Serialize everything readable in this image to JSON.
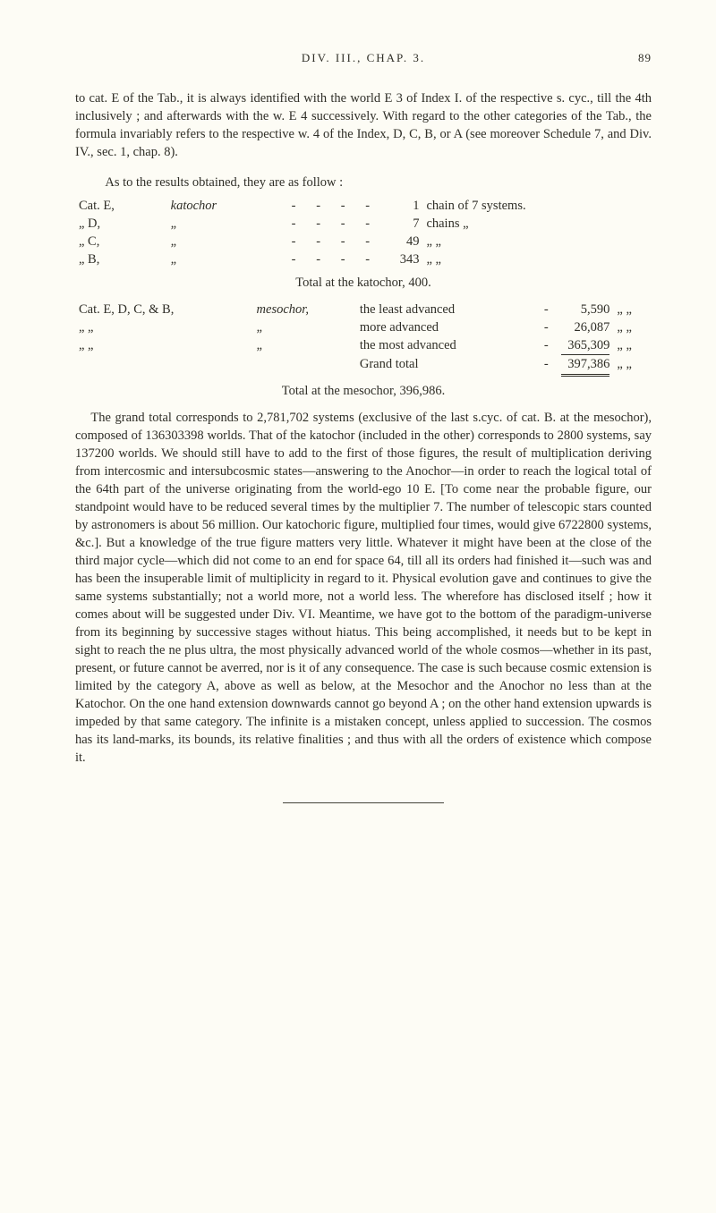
{
  "head": {
    "left": "",
    "center": "DIV. III., CHAP. 3.",
    "page": "89"
  },
  "para1": "to cat. E of the Tab., it is always identified with the world E 3 of Index I. of the respective s. cyc., till the 4th inclusively ; and afterwards with the w. E 4 successively. With regard to the other categories of the Tab., the formula invariably refers to the respective w. 4 of the Index, D, C, B, or A (see moreover Schedule 7, and Div. IV., sec. 1, chap. 8).",
  "para1b": "As to the results obtained, they are as follow :",
  "blockA": {
    "rows": [
      {
        "label": "Cat. E,",
        "item": "katochor",
        "n": "1",
        "tail": "chain of 7 systems."
      },
      {
        "label": "„  D,",
        "item": "„",
        "n": "7",
        "tail": "chains                „"
      },
      {
        "label": "„  C,",
        "item": "„",
        "n": "49",
        "tail": "„                          „"
      },
      {
        "label": "„  B,",
        "item": "„",
        "n": "343",
        "tail": "„                          „"
      }
    ],
    "total_line": "Total at the katochor, 400."
  },
  "blockB": {
    "rows": [
      {
        "lead": "Cat. E, D, C, & B,",
        "kind": "mesochor,",
        "desc": "the least advanced",
        "n": "5,590",
        "tail": "„        „"
      },
      {
        "lead": "„               „",
        "kind": "„",
        "desc": "more advanced",
        "n": "26,087",
        "tail": "„        „"
      },
      {
        "lead": "„               „",
        "kind": "„",
        "desc": "the most advanced",
        "n": "365,309",
        "tail": "„        „"
      }
    ],
    "grand_label": "Grand total",
    "grand_n": "397,386",
    "grand_tail": "„        „",
    "total_line": "Total at the mesochor, 396,986."
  },
  "para2": "The grand total corresponds to 2,781,702 systems (exclusive of the last s.cyc. of cat. B. at the mesochor), composed of 136303398 worlds. That of the katochor (included in the other) corresponds to 2800 systems, say 137200 worlds. We should still have to add to the first of those figures, the result of multiplication deriving from intercosmic and intersubcosmic states—answering to the Anochor—in order to reach the logical total of the 64th part of the universe originating from the world-ego 10 E. [To come near the probable figure, our standpoint would have to be reduced several times by the multiplier 7. The number of telescopic stars counted by astronomers is about 56 million. Our katochoric figure, multiplied four times, would give 6722800 systems, &c.]. But a knowledge of the true figure matters very little. Whatever it might have been at the close of the third major cycle—which did not come to an end for space 64, till all its orders had finished it—such was and has been the insuperable limit of multiplicity in regard to it. Physical evolution gave and continues to give the same systems substantially; not a world more, not a world less. The wherefore has disclosed itself ; how it comes about will be suggested under Div. VI. Meantime, we have got to the bottom of the paradigm-universe from its beginning by successive stages without hiatus. This being accomplished, it needs but to be kept in sight to reach the ne plus ultra, the most physically advanced world of the whole cosmos—whether in its past, present, or future cannot be averred, nor is it of any consequence. The case is such because cosmic extension is limited by the category A, above as well as below, at the Mesochor and the Anochor no less than at the Katochor. On the one hand extension downwards cannot go beyond A ; on the other hand extension upwards is impeded by that same category. The infinite is a mistaken concept, unless applied to succession. The cosmos has its land-marks, its bounds, its relative finalities ; and thus with all the orders of existence which compose it."
}
